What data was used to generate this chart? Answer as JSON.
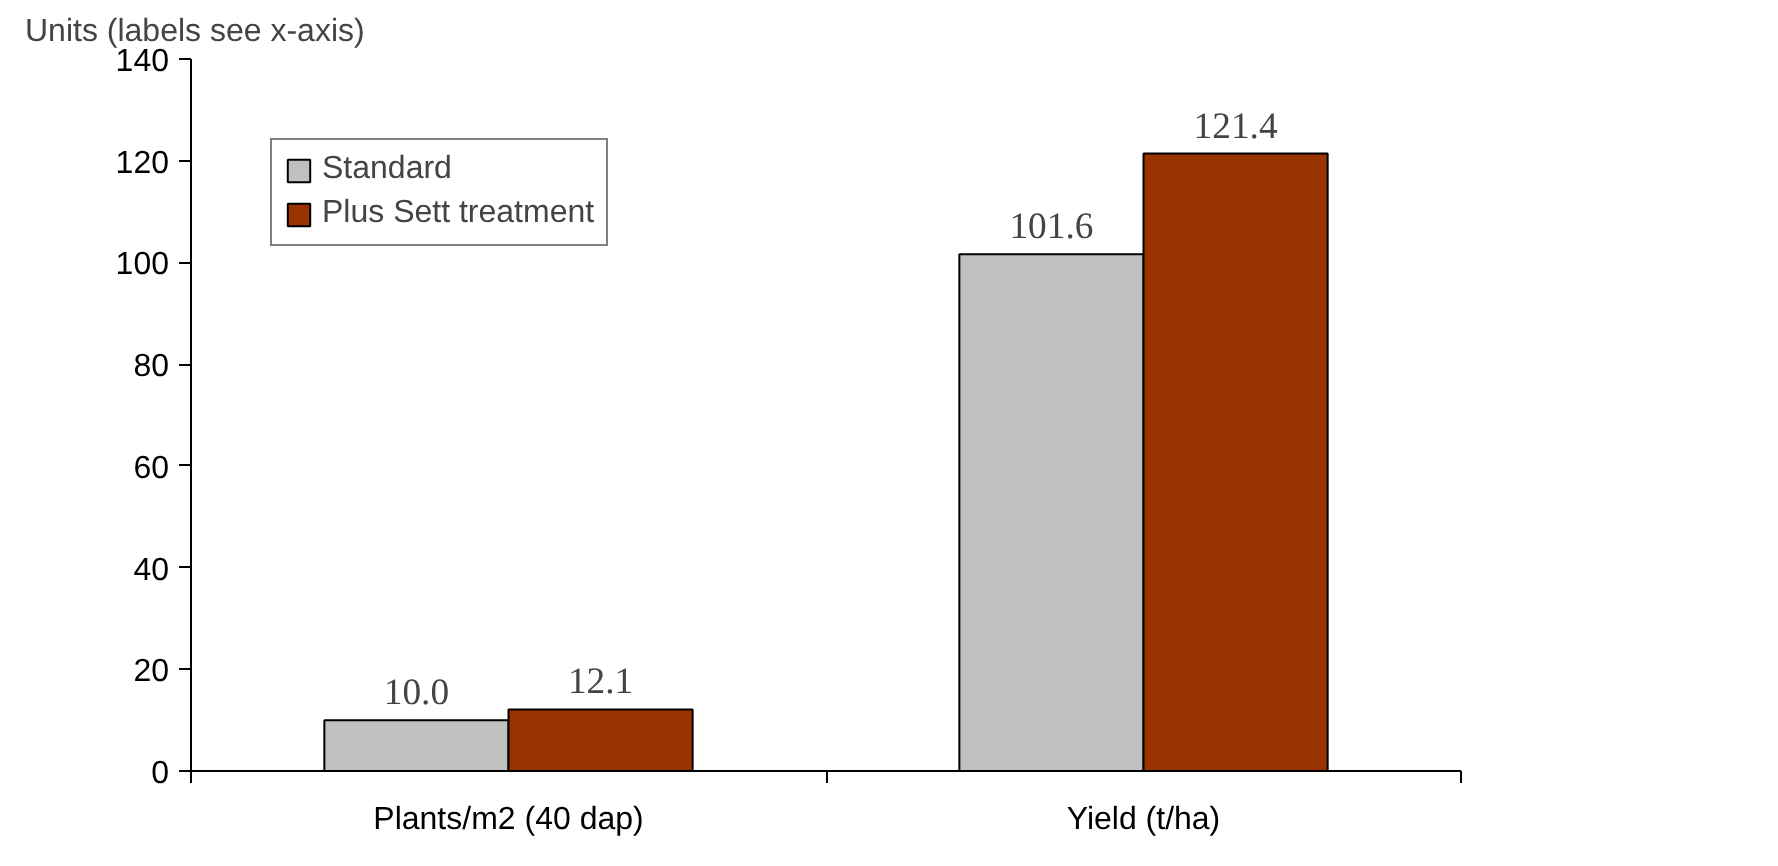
{
  "chart_data": {
    "type": "bar",
    "ylabel": "Units (labels see x-axis)",
    "categories": [
      "Plants/m2 (40 dap)",
      "Yield (t/ha)"
    ],
    "series": [
      {
        "name": "Standard",
        "color": "#c0c0c0",
        "values": [
          10.0,
          101.6
        ],
        "value_labels": [
          "10.0",
          "101.6"
        ]
      },
      {
        "name": "Plus Sett treatment",
        "color": "#993300",
        "values": [
          12.1,
          121.4
        ],
        "value_labels": [
          "12.1",
          "121.4"
        ]
      }
    ],
    "ylim": [
      0,
      140
    ],
    "yticks": [
      0,
      20,
      40,
      60,
      80,
      100,
      120,
      140
    ],
    "grid": false,
    "legend": "top left"
  }
}
